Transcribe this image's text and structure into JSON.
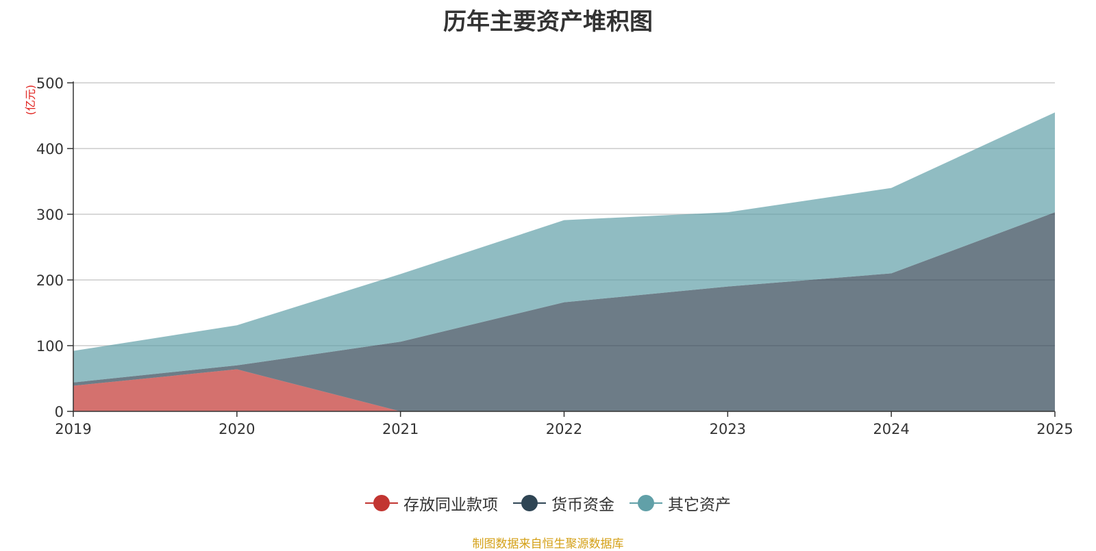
{
  "title": "历年主要资产堆积图",
  "source": "制图数据来自恒生聚源数据库",
  "chart_data": {
    "type": "area",
    "stacked": true,
    "x": [
      "2019",
      "2020",
      "2021",
      "2022",
      "2023",
      "2024",
      "2025"
    ],
    "unit": "(亿元)",
    "ylim": [
      0,
      500
    ],
    "yticks": [
      0,
      100,
      200,
      300,
      400,
      500
    ],
    "grid": true,
    "legend_position": "bottom-center",
    "series": [
      {
        "name": "存放同业款项",
        "color": "#c23531",
        "values": [
          39,
          64,
          0,
          0,
          0,
          0,
          0
        ]
      },
      {
        "name": "货币资金",
        "color": "#2f4554",
        "values": [
          5,
          6,
          106,
          166,
          190,
          210,
          303
        ]
      },
      {
        "name": "其它资产",
        "color": "#61a0a8",
        "values": [
          48,
          61,
          103,
          125,
          113,
          130,
          152
        ]
      }
    ]
  }
}
